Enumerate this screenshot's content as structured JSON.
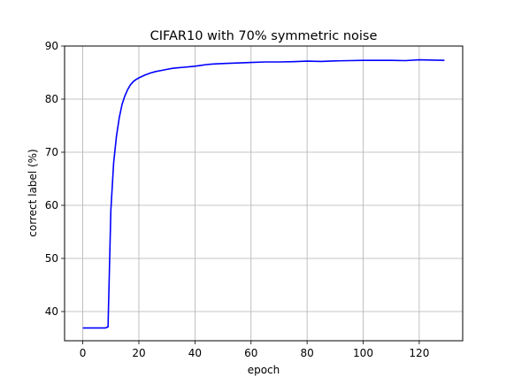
{
  "chart_data": {
    "type": "line",
    "title": "CIFAR10 with 70% symmetric noise",
    "xlabel": "epoch",
    "ylabel": "correct label (%)",
    "xlim": [
      -6.5,
      135.5
    ],
    "ylim": [
      34.5,
      90
    ],
    "xticks": [
      0,
      20,
      40,
      60,
      80,
      100,
      120
    ],
    "yticks": [
      40,
      50,
      60,
      70,
      80,
      90
    ],
    "grid": true,
    "series": [
      {
        "color": "#0000ff",
        "x": [
          0,
          1,
          2,
          3,
          4,
          5,
          6,
          7,
          8,
          9,
          10,
          11,
          12,
          13,
          14,
          15,
          16,
          17,
          18,
          19,
          20,
          22,
          24,
          26,
          28,
          30,
          32,
          34,
          36,
          38,
          40,
          42,
          44,
          46,
          48,
          50,
          55,
          60,
          65,
          70,
          75,
          80,
          85,
          90,
          95,
          100,
          105,
          110,
          115,
          120,
          125,
          129
        ],
        "y": [
          36.9,
          36.9,
          36.9,
          36.9,
          36.9,
          36.9,
          36.9,
          36.9,
          36.9,
          37.1,
          59.0,
          68.0,
          73.0,
          76.5,
          79.0,
          80.6,
          81.8,
          82.7,
          83.3,
          83.7,
          84.0,
          84.5,
          84.9,
          85.2,
          85.4,
          85.6,
          85.8,
          85.9,
          86.0,
          86.1,
          86.2,
          86.35,
          86.5,
          86.6,
          86.65,
          86.7,
          86.8,
          86.9,
          87.0,
          87.0,
          87.05,
          87.15,
          87.1,
          87.2,
          87.25,
          87.3,
          87.3,
          87.3,
          87.25,
          87.4,
          87.35,
          87.3
        ]
      }
    ]
  }
}
